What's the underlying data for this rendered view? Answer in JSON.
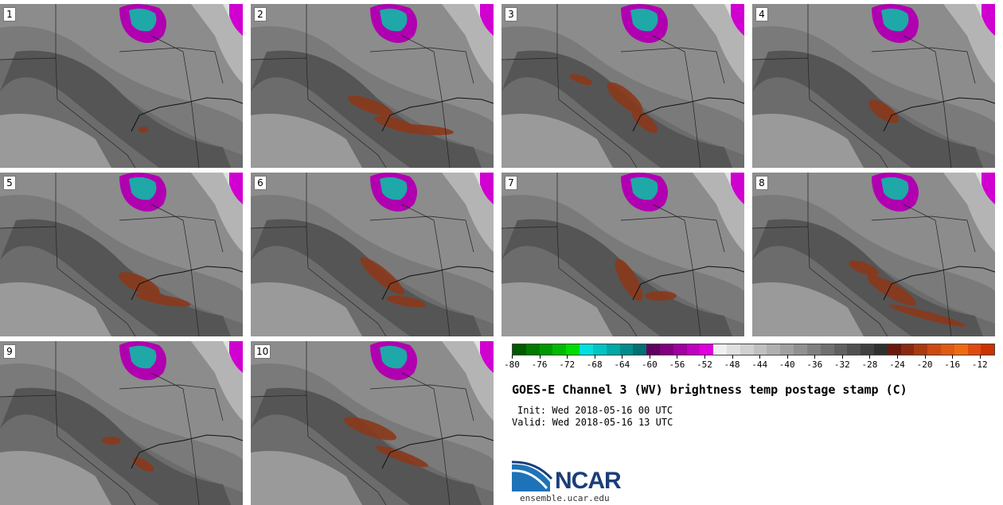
{
  "title": "GOES-E Channel 3 (WV) brightness temp postage stamp (C)",
  "init_line": "Init: Wed 2018-05-16 00 UTC",
  "valid_line": "Valid: Wed 2018-05-16 13 UTC",
  "logo_text": "NCAR",
  "site": "ensemble.ucar.edu",
  "panels": [
    {
      "label": "1"
    },
    {
      "label": "2"
    },
    {
      "label": "3"
    },
    {
      "label": "4"
    },
    {
      "label": "5"
    },
    {
      "label": "6"
    },
    {
      "label": "7"
    },
    {
      "label": "8"
    },
    {
      "label": "9"
    },
    {
      "label": "10"
    }
  ],
  "colorbar": {
    "min": -80,
    "max": -10,
    "tick_labels": [
      "-80",
      "-76",
      "-72",
      "-68",
      "-64",
      "-60",
      "-56",
      "-52",
      "-48",
      "-44",
      "-40",
      "-36",
      "-32",
      "-28",
      "-24",
      "-20",
      "-16",
      "-12"
    ],
    "colors": [
      "#005a00",
      "#007a00",
      "#009a00",
      "#00bb00",
      "#00dd00",
      "#00e0e0",
      "#00c4c4",
      "#00a8a8",
      "#008c8c",
      "#007070",
      "#600060",
      "#800080",
      "#a000a0",
      "#c000c0",
      "#e000e0",
      "#f0f0f0",
      "#e0e0e0",
      "#d0d0d0",
      "#c0c0c0",
      "#b0b0b0",
      "#a0a0a0",
      "#909090",
      "#808080",
      "#707070",
      "#606060",
      "#505050",
      "#404040",
      "#303030",
      "#6a1a0a",
      "#8a2a10",
      "#aa3a10",
      "#cc4a10",
      "#e05a10",
      "#f06a10",
      "#e04a10",
      "#cc3300"
    ]
  }
}
